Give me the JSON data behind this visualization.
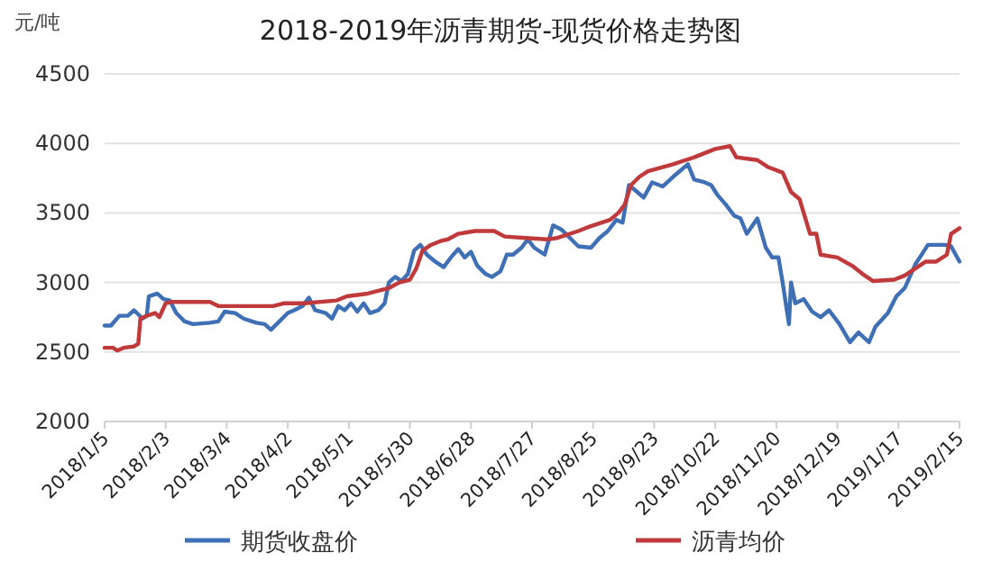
{
  "chart_data": {
    "type": "line",
    "title": "2018-2019年沥青期货-现货价格走势图",
    "ylabel": "元/吨",
    "grid": "y",
    "legend": "bottom",
    "xlim": [
      "2018-01-05",
      "2019-02-15"
    ],
    "xticks": [
      {
        "value": "2018-01-05",
        "label": "2018/1/5"
      },
      {
        "value": "2018-02-03",
        "label": "2018/2/3"
      },
      {
        "value": "2018-03-04",
        "label": "2018/3/4"
      },
      {
        "value": "2018-04-02",
        "label": "2018/4/2"
      },
      {
        "value": "2018-05-01",
        "label": "2018/5/1"
      },
      {
        "value": "2018-05-30",
        "label": "2018/5/30"
      },
      {
        "value": "2018-06-28",
        "label": "2018/6/28"
      },
      {
        "value": "2018-07-27",
        "label": "2018/7/27"
      },
      {
        "value": "2018-08-25",
        "label": "2018/8/25"
      },
      {
        "value": "2018-09-23",
        "label": "2018/9/23"
      },
      {
        "value": "2018-10-22",
        "label": "2018/10/22"
      },
      {
        "value": "2018-11-20",
        "label": "2018/11/20"
      },
      {
        "value": "2018-12-19",
        "label": "2018/12/19"
      },
      {
        "value": "2019-01-17",
        "label": "2019/1/17"
      },
      {
        "value": "2019-02-15",
        "label": "2019/2/15"
      }
    ],
    "ylim": [
      2000,
      4500
    ],
    "yticks": [
      2000,
      2500,
      3000,
      3500,
      4000,
      4500
    ],
    "series": [
      {
        "name": "期货收盘价",
        "color": "#3f6fb5",
        "x": [
          "2018-01-05",
          "2018-01-08",
          "2018-01-12",
          "2018-01-16",
          "2018-01-19",
          "2018-01-23",
          "2018-01-25",
          "2018-01-26",
          "2018-01-30",
          "2018-02-02",
          "2018-02-05",
          "2018-02-08",
          "2018-02-12",
          "2018-02-16",
          "2018-02-24",
          "2018-02-28",
          "2018-03-03",
          "2018-03-08",
          "2018-03-12",
          "2018-03-18",
          "2018-03-22",
          "2018-03-25",
          "2018-03-29",
          "2018-04-02",
          "2018-04-05",
          "2018-04-09",
          "2018-04-12",
          "2018-04-15",
          "2018-04-20",
          "2018-04-23",
          "2018-04-26",
          "2018-04-29",
          "2018-05-02",
          "2018-05-05",
          "2018-05-08",
          "2018-05-11",
          "2018-05-15",
          "2018-05-18",
          "2018-05-20",
          "2018-05-23",
          "2018-05-26",
          "2018-05-29",
          "2018-06-01",
          "2018-06-04",
          "2018-06-07",
          "2018-06-11",
          "2018-06-15",
          "2018-06-19",
          "2018-06-22",
          "2018-06-25",
          "2018-06-28",
          "2018-07-01",
          "2018-07-05",
          "2018-07-08",
          "2018-07-12",
          "2018-07-15",
          "2018-07-18",
          "2018-07-22",
          "2018-07-25",
          "2018-07-28",
          "2018-08-02",
          "2018-08-06",
          "2018-08-10",
          "2018-08-18",
          "2018-08-24",
          "2018-08-28",
          "2018-09-01",
          "2018-09-05",
          "2018-09-08",
          "2018-09-11",
          "2018-09-15",
          "2018-09-18",
          "2018-09-22",
          "2018-09-27",
          "2018-10-02",
          "2018-10-09",
          "2018-10-12",
          "2018-10-17",
          "2018-10-20",
          "2018-10-23",
          "2018-10-27",
          "2018-10-31",
          "2018-11-03",
          "2018-11-06",
          "2018-11-11",
          "2018-11-15",
          "2018-11-18",
          "2018-11-21",
          "2018-11-23",
          "2018-11-26",
          "2018-11-27",
          "2018-11-29",
          "2018-12-03",
          "2018-12-07",
          "2018-12-11",
          "2018-12-15",
          "2018-12-20",
          "2018-12-25",
          "2018-12-29",
          "2019-01-03",
          "2019-01-06",
          "2019-01-12",
          "2019-01-16",
          "2019-01-20",
          "2019-01-25",
          "2019-01-31",
          "2019-02-08",
          "2019-02-11",
          "2019-02-15"
        ],
        "values": [
          2690,
          2690,
          2760,
          2760,
          2800,
          2740,
          2760,
          2900,
          2920,
          2880,
          2870,
          2780,
          2720,
          2700,
          2710,
          2720,
          2790,
          2780,
          2740,
          2710,
          2700,
          2660,
          2720,
          2780,
          2800,
          2830,
          2890,
          2800,
          2780,
          2740,
          2830,
          2800,
          2850,
          2790,
          2850,
          2780,
          2800,
          2850,
          3000,
          3040,
          3010,
          3060,
          3230,
          3270,
          3200,
          3150,
          3110,
          3190,
          3240,
          3180,
          3220,
          3120,
          3060,
          3040,
          3080,
          3200,
          3200,
          3250,
          3310,
          3250,
          3200,
          3410,
          3380,
          3260,
          3250,
          3320,
          3370,
          3450,
          3430,
          3700,
          3650,
          3610,
          3720,
          3690,
          3760,
          3850,
          3740,
          3720,
          3700,
          3630,
          3560,
          3480,
          3460,
          3350,
          3460,
          3250,
          3180,
          3180,
          3000,
          2700,
          3000,
          2850,
          2880,
          2790,
          2750,
          2800,
          2700,
          2570,
          2640,
          2570,
          2680,
          2780,
          2900,
          2960,
          3130,
          3270,
          3270,
          3260,
          3150
        ]
      },
      {
        "name": "沥青均价",
        "color": "#c0393b",
        "x": [
          "2018-01-05",
          "2018-01-09",
          "2018-01-11",
          "2018-01-14",
          "2018-01-19",
          "2018-01-21",
          "2018-01-22",
          "2018-01-25",
          "2018-01-29",
          "2018-01-31",
          "2018-02-03",
          "2018-02-06",
          "2018-02-24",
          "2018-02-28",
          "2018-03-26",
          "2018-03-31",
          "2018-04-10",
          "2018-04-25",
          "2018-04-30",
          "2018-05-10",
          "2018-05-20",
          "2018-05-25",
          "2018-05-30",
          "2018-06-02",
          "2018-06-05",
          "2018-06-09",
          "2018-06-14",
          "2018-06-17",
          "2018-06-22",
          "2018-06-26",
          "2018-06-30",
          "2018-07-09",
          "2018-07-14",
          "2018-07-24",
          "2018-08-03",
          "2018-08-08",
          "2018-08-18",
          "2018-08-23",
          "2018-09-02",
          "2018-09-06",
          "2018-09-09",
          "2018-09-12",
          "2018-09-16",
          "2018-09-20",
          "2018-10-02",
          "2018-10-12",
          "2018-10-22",
          "2018-10-29",
          "2018-11-01",
          "2018-11-11",
          "2018-11-16",
          "2018-11-23",
          "2018-11-27",
          "2018-12-01",
          "2018-12-03",
          "2018-12-06",
          "2018-12-09",
          "2018-12-11",
          "2018-12-19",
          "2018-12-26",
          "2018-12-31",
          "2019-01-05",
          "2019-01-15",
          "2019-01-20",
          "2019-01-25",
          "2019-01-30",
          "2019-02-04",
          "2019-02-09",
          "2019-02-11",
          "2019-02-15"
        ],
        "values": [
          2530,
          2530,
          2510,
          2530,
          2540,
          2560,
          2740,
          2760,
          2780,
          2750,
          2850,
          2860,
          2860,
          2830,
          2830,
          2850,
          2850,
          2870,
          2900,
          2920,
          2960,
          3000,
          3020,
          3100,
          3230,
          3270,
          3300,
          3310,
          3350,
          3360,
          3370,
          3370,
          3330,
          3320,
          3310,
          3320,
          3370,
          3400,
          3450,
          3500,
          3560,
          3700,
          3760,
          3800,
          3850,
          3900,
          3960,
          3980,
          3900,
          3880,
          3830,
          3790,
          3650,
          3600,
          3500,
          3350,
          3350,
          3200,
          3180,
          3120,
          3060,
          3010,
          3020,
          3050,
          3100,
          3150,
          3150,
          3200,
          3350,
          3390
        ]
      }
    ]
  }
}
